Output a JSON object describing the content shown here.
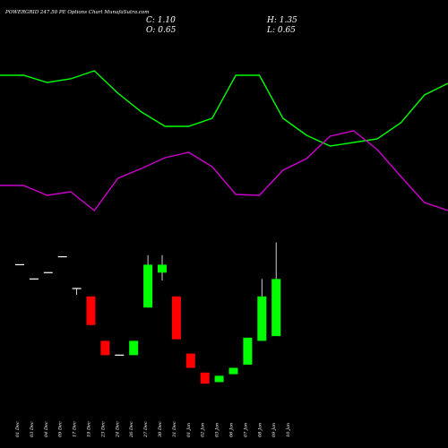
{
  "header": {
    "title": "POWERGRID 247.50  PE Options  Chart MunafaSutra.com",
    "close": "C: 1.10",
    "open": "O: 0.65",
    "high": "H: 1.35",
    "low": "L: 0.65"
  },
  "chart_data": {
    "type": "candlestick",
    "colors": {
      "up": "#00ff00",
      "down": "#ff0000",
      "line_green": "#00ff00",
      "line_magenta": "#cc00cc",
      "background": "#000000"
    },
    "categories": [
      "01 Dec",
      "03 Dec",
      "04 Dec",
      "09 Dec",
      "17 Dec",
      "19 Dec",
      "23 Dec",
      "24 Dec",
      "26 Dec",
      "27 Dec",
      "30 Dec",
      "31 Dec",
      "01 Jan",
      "02 Jan",
      "03 Jan",
      "06 Jan",
      "07 Jan",
      "08 Jan",
      "09 Jan",
      "10 Jan"
    ],
    "candles": [
      {
        "o": 3.8,
        "h": 3.8,
        "l": 3.8,
        "c": 3.8
      },
      {
        "o": 3.35,
        "h": 3.35,
        "l": 3.35,
        "c": 3.35
      },
      {
        "o": 3.55,
        "h": 3.55,
        "l": 3.55,
        "c": 3.55
      },
      {
        "o": 4.05,
        "h": 4.05,
        "l": 4.05,
        "c": 4.05
      },
      {
        "o": 3.05,
        "h": 3.05,
        "l": 2.85,
        "c": 3.05
      },
      {
        "o": 2.8,
        "h": 2.8,
        "l": 1.9,
        "c": 1.9
      },
      {
        "o": 1.4,
        "h": 1.4,
        "l": 0.95,
        "c": 0.95
      },
      {
        "o": 0.95,
        "h": 0.95,
        "l": 0.95,
        "c": 0.95
      },
      {
        "o": 0.95,
        "h": 1.4,
        "l": 0.95,
        "c": 1.4
      },
      {
        "o": 2.45,
        "h": 4.1,
        "l": 2.45,
        "c": 3.8
      },
      {
        "o": 3.55,
        "h": 4.1,
        "l": 3.3,
        "c": 3.8
      },
      {
        "o": 2.8,
        "h": 2.8,
        "l": 1.45,
        "c": 1.45
      },
      {
        "o": 1.0,
        "h": 1.0,
        "l": 0.55,
        "c": 0.55
      },
      {
        "o": 0.4,
        "h": 0.4,
        "l": 0.05,
        "c": 0.05
      },
      {
        "o": 0.1,
        "h": 0.3,
        "l": 0.1,
        "c": 0.3
      },
      {
        "o": 0.35,
        "h": 0.55,
        "l": 0.35,
        "c": 0.55
      },
      {
        "o": 0.65,
        "h": 1.5,
        "l": 0.65,
        "c": 1.5
      },
      {
        "o": 1.4,
        "h": 3.35,
        "l": 1.4,
        "c": 2.8
      },
      {
        "o": 1.55,
        "h": 4.5,
        "l": 1.55,
        "c": 3.35
      },
      {
        "o": null,
        "h": null,
        "l": null,
        "c": null
      }
    ],
    "line_green": [
      84,
      84,
      92,
      88,
      79,
      104,
      125,
      141,
      141,
      132,
      84,
      84,
      132,
      151,
      163,
      159,
      155,
      137,
      106,
      93
    ],
    "line_magenta": [
      207,
      207,
      218,
      214,
      235,
      199,
      188,
      176,
      170,
      186,
      217,
      218,
      190,
      177,
      152,
      146,
      167,
      197,
      226,
      235
    ],
    "price_ylim": [
      0,
      4.8
    ]
  }
}
